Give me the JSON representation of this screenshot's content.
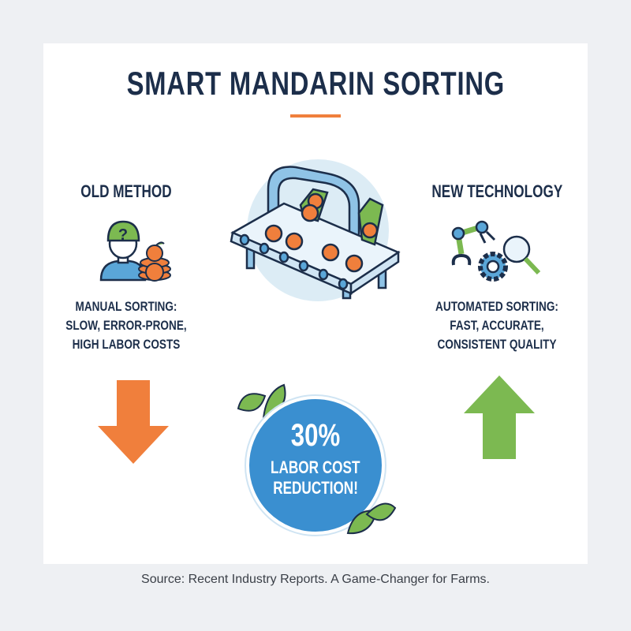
{
  "title": "SMART MANDARIN SORTING",
  "old": {
    "heading": "OLD METHOD",
    "lines": [
      "MANUAL SORTING:",
      "SLOW, ERROR-PRONE,",
      "HIGH LABOR COSTS"
    ]
  },
  "new": {
    "heading": "NEW TECHNOLOGY",
    "lines": [
      "AUTOMATED SORTING:",
      "FAST, ACCURATE,",
      "CONSISTENT QUALITY"
    ]
  },
  "badge": {
    "value": "30%",
    "line1": "LABOR COST",
    "line2": "REDUCTION!"
  },
  "source": "Source: Recent Industry Reports. A Game-Changer for Farms.",
  "colors": {
    "navy": "#1c2e4a",
    "orange": "#f07f3c",
    "green": "#7cb951",
    "blue": "#3a8fd0",
    "light_blue": "#dcecf5"
  },
  "icons": [
    "worker-question-icon",
    "mandarin-pile-icon",
    "conveyor-sorter-illustration",
    "robot-arm-icon",
    "gear-icon",
    "magnifier-icon",
    "arrow-down-icon",
    "arrow-up-icon",
    "leaf-icon"
  ]
}
